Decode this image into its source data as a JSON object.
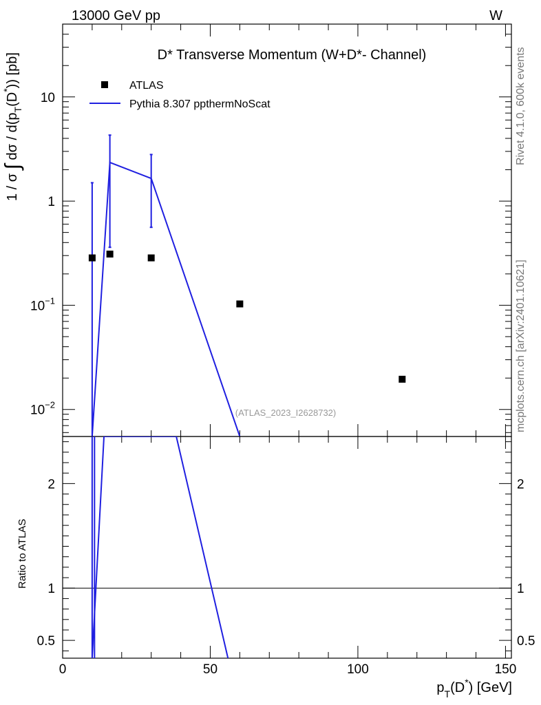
{
  "header": {
    "energy_label": "13000 GeV pp",
    "process_label": "W"
  },
  "side_labels": {
    "rivet": "Rivet 4.1.0,  600k events",
    "mcplots": "mcplots.cern.ch [arXiv:2401.10621]"
  },
  "chart_data": [
    {
      "type": "scatter",
      "title": "D* Transverse Momentum (W+D*- Channel)",
      "watermark": "(ATLAS_2023_I2628732)",
      "xlabel": "p_T(D^*) [GeV]",
      "ylabel": "1 / σ ∫ dσ / d(p_T(D^*)) [pb]",
      "xlim": [
        0,
        152
      ],
      "ylim": [
        0.0055,
        50
      ],
      "yscale": "log",
      "x_ticks": [
        "0",
        "50",
        "100",
        "150"
      ],
      "y_ticks": [
        {
          "value": 10,
          "label": "10"
        },
        {
          "value": 1,
          "label": "1"
        },
        {
          "value": 0.1,
          "base": "10",
          "exp": "−1"
        },
        {
          "value": 0.01,
          "base": "10",
          "exp": "−2"
        }
      ],
      "legend_position": "top-left",
      "series": [
        {
          "name": "ATLAS",
          "style": "markers",
          "color": "#000000",
          "points": [
            {
              "x": 10,
              "y": 0.285
            },
            {
              "x": 16,
              "y": 0.31
            },
            {
              "x": 30,
              "y": 0.285
            },
            {
              "x": 60,
              "y": 0.103
            },
            {
              "x": 115,
              "y": 0.0195
            }
          ]
        },
        {
          "name": "Pythia 8.307 ppthermNoScat",
          "style": "line",
          "color": "#1f1fe0",
          "points": [
            {
              "x": 10,
              "y": 0.0055
            },
            {
              "x": 16,
              "y": 2.35
            },
            {
              "x": 30,
              "y": 1.65
            },
            {
              "x": 60,
              "y": 0.0055
            }
          ],
          "error_bars": [
            {
              "x": 10,
              "low": 0.0055,
              "high": 1.5
            },
            {
              "x": 16,
              "low": 0.36,
              "high": 4.3
            },
            {
              "x": 30,
              "low": 0.56,
              "high": 2.8
            }
          ]
        }
      ]
    },
    {
      "type": "line",
      "ylabel": "Ratio to ATLAS",
      "xlim": [
        0,
        152
      ],
      "ylim": [
        0.33,
        2.45
      ],
      "x_ticks": [
        "0",
        "50",
        "100",
        "150"
      ],
      "y_ticks": [
        {
          "value": 0.5,
          "label": "0.5"
        },
        {
          "value": 1,
          "label": "1"
        },
        {
          "value": 2,
          "label": "2"
        }
      ],
      "reference_line": 1,
      "series": [
        {
          "name": "Pythia 8.307 ppthermNoScat",
          "color": "#1f1fe0",
          "points": [
            {
              "x": 10,
              "y": 0.33
            },
            {
              "x": 14,
              "y": 2.45
            },
            {
              "x": 38.5,
              "y": 2.45
            },
            {
              "x": 56,
              "y": 0.33
            }
          ],
          "vertical_drops": [
            {
              "x": 10,
              "from": 2.45,
              "to": 0.33
            },
            {
              "x": 10.8,
              "from": 2.45,
              "to": 0.33
            }
          ]
        }
      ]
    }
  ]
}
